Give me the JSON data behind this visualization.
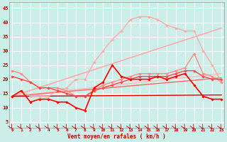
{
  "background_color": "#cceee8",
  "grid_color": "#ffffff",
  "xlabel": "Vent moyen/en rafales ( km/h )",
  "ylabel_ticks": [
    5,
    10,
    15,
    20,
    25,
    30,
    35,
    40,
    45
  ],
  "x_ticks": [
    0,
    1,
    2,
    3,
    4,
    5,
    6,
    7,
    8,
    9,
    10,
    11,
    12,
    13,
    14,
    15,
    16,
    17,
    18,
    19,
    20,
    21,
    22,
    23
  ],
  "xlim": [
    -0.3,
    23.3
  ],
  "ylim": [
    3,
    47
  ],
  "lines": [
    {
      "x": [
        0,
        23
      ],
      "y": [
        14.0,
        38.0
      ],
      "color": "#ffaaaa",
      "lw": 1.2,
      "marker": null,
      "ms": 0,
      "alpha": 1.0,
      "zorder": 2
    },
    {
      "x": [
        0,
        23
      ],
      "y": [
        14.0,
        22.0
      ],
      "color": "#ffbbbb",
      "lw": 1.0,
      "marker": null,
      "ms": 0,
      "alpha": 1.0,
      "zorder": 2
    },
    {
      "x": [
        0,
        23
      ],
      "y": [
        14.0,
        20.5
      ],
      "color": "#ff6666",
      "lw": 1.0,
      "marker": null,
      "ms": 0,
      "alpha": 1.0,
      "zorder": 2
    },
    {
      "x": [
        0,
        23
      ],
      "y": [
        14.0,
        14.5
      ],
      "color": "#dd0000",
      "lw": 1.0,
      "marker": null,
      "ms": 0,
      "alpha": 1.0,
      "zorder": 2
    },
    {
      "x": [
        0,
        1,
        2,
        3,
        4,
        5,
        6,
        7,
        8,
        9,
        10,
        11,
        12,
        13,
        14,
        15,
        16,
        17,
        18,
        19,
        20,
        21,
        22,
        23
      ],
      "y": [
        14,
        16,
        14,
        14,
        14,
        16,
        17,
        20,
        20,
        26,
        30,
        34,
        37,
        41,
        42,
        42,
        41,
        39,
        38,
        37,
        37,
        30,
        25,
        19
      ],
      "color": "#ffaaaa",
      "lw": 1.0,
      "marker": "D",
      "ms": 1.8,
      "alpha": 1.0,
      "zorder": 3
    },
    {
      "x": [
        0,
        1,
        2,
        3,
        4,
        5,
        6,
        7,
        8,
        9,
        10,
        11,
        12,
        13,
        14,
        15,
        16,
        17,
        18,
        19,
        20,
        21,
        22,
        23
      ],
      "y": [
        23,
        22,
        19,
        17,
        17,
        17,
        16,
        14,
        14,
        16,
        18,
        19,
        20,
        21,
        22,
        22,
        22,
        22,
        23,
        24,
        29,
        22,
        21,
        19
      ],
      "color": "#ff8888",
      "lw": 1.0,
      "marker": "D",
      "ms": 1.8,
      "alpha": 1.0,
      "zorder": 3
    },
    {
      "x": [
        0,
        1,
        2,
        3,
        4,
        5,
        6,
        7,
        8,
        9,
        10,
        11,
        12,
        13,
        14,
        15,
        16,
        17,
        18,
        19,
        20,
        21,
        22,
        23
      ],
      "y": [
        21,
        20,
        19,
        17,
        17,
        16,
        15,
        14,
        14,
        16,
        17,
        18,
        19,
        20,
        21,
        21,
        21,
        21,
        22,
        23,
        23,
        21,
        20,
        20
      ],
      "color": "#ff4444",
      "lw": 1.0,
      "marker": "D",
      "ms": 1.8,
      "alpha": 1.0,
      "zorder": 3
    },
    {
      "x": [
        0,
        1,
        2,
        3,
        4,
        5,
        6,
        7,
        8,
        9,
        10,
        11,
        12,
        13,
        14,
        15,
        16,
        17,
        18,
        19,
        20,
        21,
        22,
        23
      ],
      "y": [
        14,
        16,
        12,
        13,
        13,
        12,
        12,
        10,
        9,
        17,
        19,
        25,
        21,
        20,
        20,
        20,
        21,
        20,
        21,
        22,
        18,
        14,
        13,
        13
      ],
      "color": "#ff0000",
      "lw": 1.2,
      "marker": "D",
      "ms": 1.8,
      "alpha": 1.0,
      "zorder": 4
    }
  ],
  "arrow_color": "#cc0000",
  "tick_label_color": "#cc0000",
  "xlabel_color": "#cc0000"
}
